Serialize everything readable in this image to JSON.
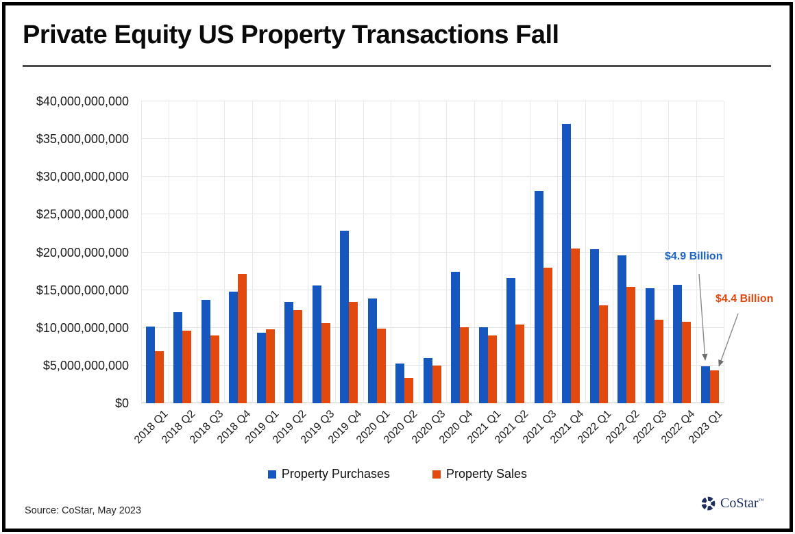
{
  "header": {
    "title": "Private Equity US Property Transactions Fall"
  },
  "footer": {
    "source": "Source: CoStar, May 2023",
    "logo_text": "CoStar",
    "logo_tm": "™"
  },
  "colors": {
    "purchases": "#1557be",
    "sales": "#e2490f",
    "annotation_purchases": "#1b63c5",
    "annotation_sales": "#e2490f",
    "logo_navy": "#1d2e5c",
    "grid": "#e4e4e4"
  },
  "chart_data": {
    "type": "bar",
    "title": "Private Equity US Property Transactions Fall",
    "xlabel": "",
    "ylabel": "",
    "grid": "light horizontal and vertical gridlines",
    "legend_position": "bottom-center",
    "ylim_usd": [
      0,
      40000000000
    ],
    "y_ticks": [
      "$0",
      "$5,000,000,000",
      "$10,000,000,000",
      "$15,000,000,000",
      "$20,000,000,000",
      "$25,000,000,000",
      "$30,000,000,000",
      "$35,000,000,000",
      "$40,000,000,000"
    ],
    "categories": [
      "2018 Q1",
      "2018 Q2",
      "2018 Q3",
      "2018 Q4",
      "2019 Q1",
      "2019 Q2",
      "2019 Q3",
      "2019 Q4",
      "2020 Q1",
      "2020 Q2",
      "2020 Q3",
      "2020 Q4",
      "2021 Q1",
      "2021 Q2",
      "2021 Q3",
      "2021 Q4",
      "2022 Q1",
      "2022 Q2",
      "2022 Q3",
      "2022 Q4",
      "2023 Q1"
    ],
    "series": [
      {
        "name": "Property Purchases",
        "color": "#1557be",
        "values_usd_billions": [
          10.2,
          12.1,
          13.7,
          14.8,
          9.3,
          13.4,
          15.6,
          22.9,
          13.9,
          5.3,
          6.0,
          17.4,
          10.1,
          16.6,
          28.1,
          37.0,
          20.4,
          19.6,
          15.2,
          15.7,
          4.9
        ]
      },
      {
        "name": "Property Sales",
        "color": "#e2490f",
        "values_usd_billions": [
          6.9,
          9.6,
          9.0,
          17.1,
          9.8,
          12.3,
          10.6,
          13.4,
          9.9,
          3.4,
          5.0,
          10.1,
          9.0,
          10.4,
          18.0,
          20.5,
          13.0,
          15.4,
          11.1,
          10.8,
          4.4
        ]
      }
    ],
    "annotations": [
      {
        "text": "$4.9 Billion",
        "series": "Property Purchases",
        "category": "2023 Q1",
        "color": "#1b63c5"
      },
      {
        "text": "$4.4 Billion",
        "series": "Property Sales",
        "category": "2023 Q1",
        "color": "#e2490f"
      }
    ]
  }
}
